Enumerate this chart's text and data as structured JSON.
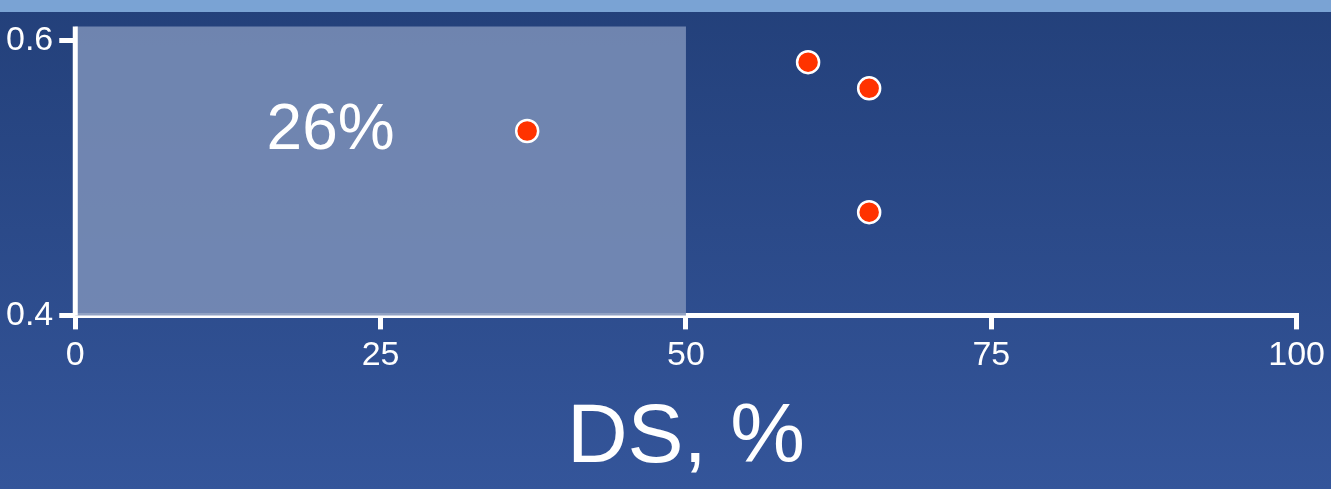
{
  "chart_data": {
    "type": "scatter",
    "xlabel": "DS, %",
    "series": [
      {
        "color": "#ff3300",
        "x": [
          37,
          60,
          65,
          65
        ],
        "values": [
          0.534,
          0.584,
          0.565,
          0.475
        ]
      }
    ],
    "xlim": [
      0,
      100
    ],
    "xticks": [
      0,
      25,
      50,
      75,
      100
    ],
    "ylim": [
      0.4,
      0.61
    ],
    "yticks": [
      0.4,
      0.6
    ],
    "bands": [
      {
        "axis": "x",
        "from": 0,
        "to": 50,
        "label": "26%",
        "color": "#7d90b8"
      }
    ],
    "marker": "circle",
    "grid": false,
    "legend": false
  }
}
